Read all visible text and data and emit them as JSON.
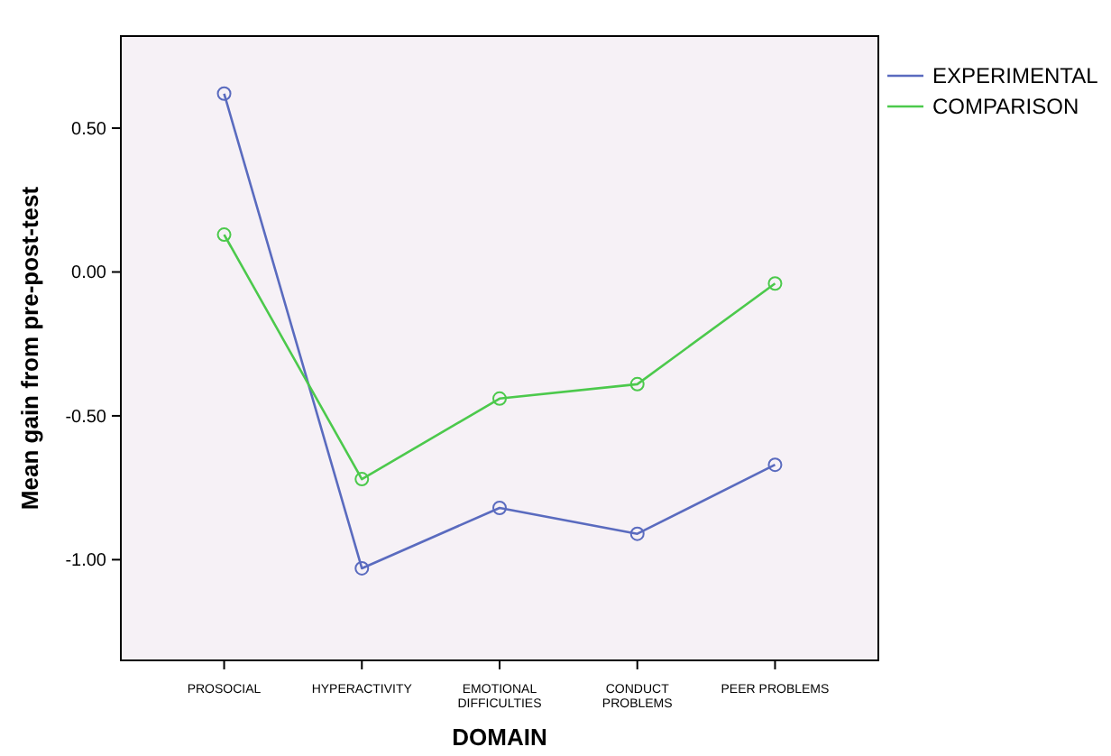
{
  "chart_data": {
    "type": "line",
    "xlabel": "DOMAIN",
    "ylabel": "Mean gain from pre-post-test",
    "categories": [
      "PROSOCIAL",
      "HYPERACTIVITY",
      "EMOTIONAL DIFFICULTIES",
      "CONDUCT PROBLEMS",
      "PEER PROBLEMS"
    ],
    "series": [
      {
        "name": "EXPERIMENTAL",
        "color": "#5a6bbf",
        "values": [
          0.62,
          -1.03,
          -0.82,
          -0.91,
          -0.67
        ]
      },
      {
        "name": "COMPARISON",
        "color": "#4cc94c",
        "values": [
          0.13,
          -0.72,
          -0.44,
          -0.39,
          -0.04
        ]
      }
    ],
    "ylim": [
      -1.35,
      0.82
    ],
    "yticks": [
      {
        "value": 0.5,
        "label": "0.50"
      },
      {
        "value": 0,
        "label": "0.00"
      },
      {
        "value": -0.5,
        "label": "-0.50"
      },
      {
        "value": -1,
        "label": "-1.00"
      }
    ],
    "marker": "circle",
    "line_style": "solid",
    "legend": "top right",
    "grid": false
  }
}
